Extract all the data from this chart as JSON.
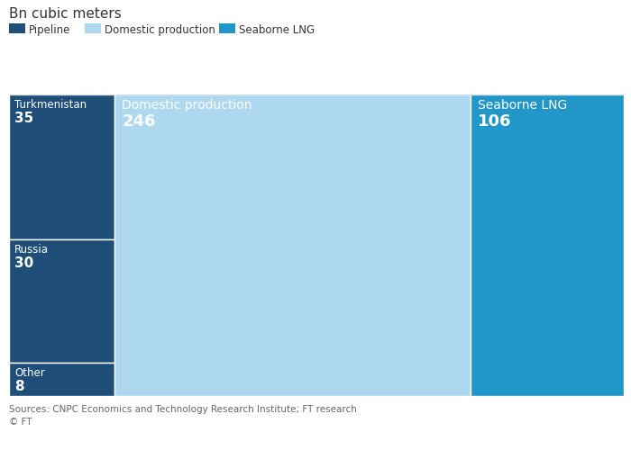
{
  "title": "Bn cubic meters",
  "fig_bg": "#ffffff",
  "categories": {
    "pipeline": {
      "label": "Pipeline",
      "color": "#1f4e79",
      "items": [
        {
          "name": "Turkmenistan",
          "value": 35
        },
        {
          "name": "Russia",
          "value": 30
        },
        {
          "name": "Other",
          "value": 8
        }
      ],
      "total": 73
    },
    "domestic": {
      "label": "Domestic production",
      "color": "#add8f0",
      "value": 246
    },
    "seaborne": {
      "label": "Seaborne LNG",
      "color": "#2196c9",
      "value": 106
    }
  },
  "total": 425,
  "source_text": "Sources: CNPC Economics and Technology Research Institute; FT research",
  "copyright_text": "© FT",
  "legend_items": [
    {
      "label": "Pipeline",
      "color": "#1f4e79"
    },
    {
      "label": "Domestic production",
      "color": "#add8f0"
    },
    {
      "label": "Seaborne LNG",
      "color": "#2196c9"
    }
  ],
  "text_color": "#ffffff",
  "footer_color": "#666666",
  "title_color": "#333333",
  "legend_text_color": "#333333",
  "border_color": "#ffffff"
}
